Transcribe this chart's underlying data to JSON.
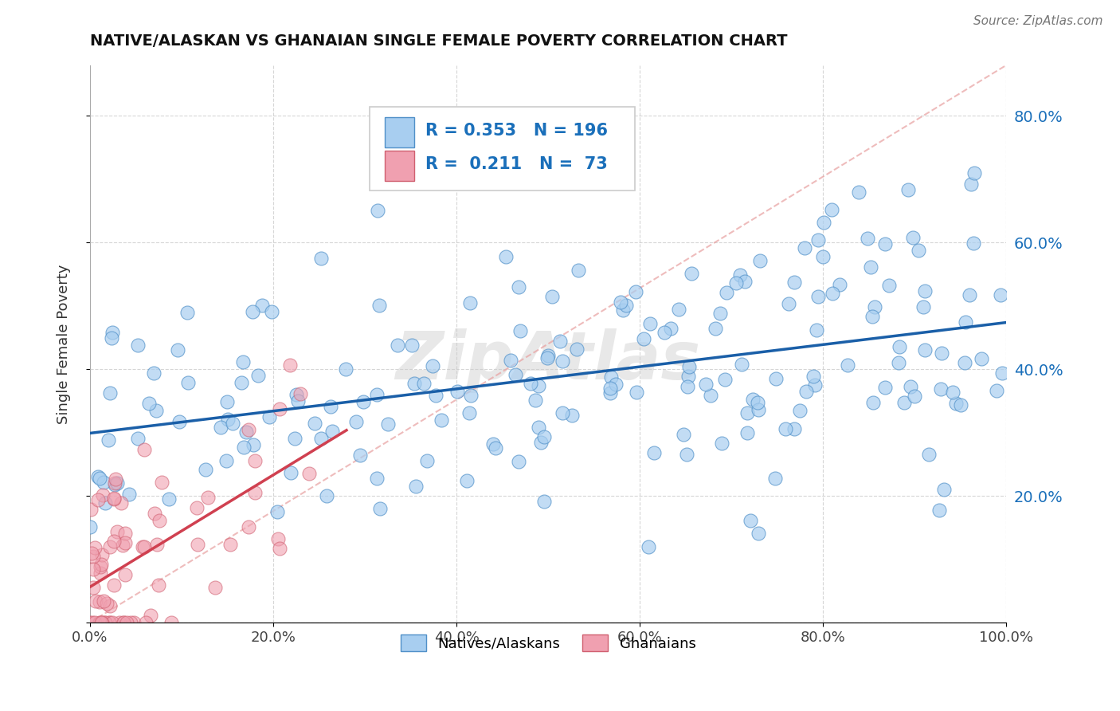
{
  "title": "NATIVE/ALASKAN VS GHANAIAN SINGLE FEMALE POVERTY CORRELATION CHART",
  "source": "Source: ZipAtlas.com",
  "ylabel": "Single Female Poverty",
  "xlim": [
    0,
    1.0
  ],
  "ylim": [
    0,
    0.88
  ],
  "xticks": [
    0.0,
    0.2,
    0.4,
    0.6,
    0.8,
    1.0
  ],
  "xtick_labels": [
    "0.0%",
    "20.0%",
    "40.0%",
    "60.0%",
    "80.0%",
    "100.0%"
  ],
  "yticks": [
    0.0,
    0.2,
    0.4,
    0.6,
    0.8
  ],
  "ytick_labels": [
    "",
    "20.0%",
    "40.0%",
    "60.0%",
    "80.0%"
  ],
  "blue_R": 0.353,
  "blue_N": 196,
  "pink_R": 0.211,
  "pink_N": 73,
  "blue_color": "#a8cef0",
  "pink_color": "#f0a0b0",
  "blue_edge_color": "#5090c8",
  "pink_edge_color": "#d06070",
  "blue_line_color": "#1a5fa8",
  "pink_line_color": "#d04050",
  "legend_label_blue": "Natives/Alaskans",
  "legend_label_pink": "Ghanaians",
  "watermark": "ZipAtlas",
  "blue_intercept": 0.315,
  "blue_slope": 0.155,
  "pink_intercept": 0.0,
  "pink_slope": 1.05
}
